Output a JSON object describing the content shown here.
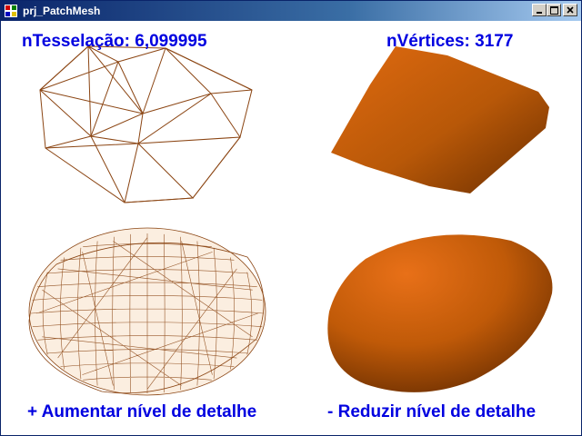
{
  "window": {
    "title": "prj_PatchMesh"
  },
  "overlay": {
    "tessellation": "nTesselação: 6,099995",
    "vertices": "nVértices: 3177",
    "increase_hint": "+  Aumentar nível de detalhe",
    "decrease_hint": "- Reduzir nível de detalhe"
  },
  "colors": {
    "text": "#0000e0",
    "wire": "#8b4513",
    "surface": "#c8600a",
    "titlebar": "#0a246a"
  },
  "icons": [
    "app-icon",
    "minimize-icon",
    "maximize-icon",
    "close-icon"
  ]
}
